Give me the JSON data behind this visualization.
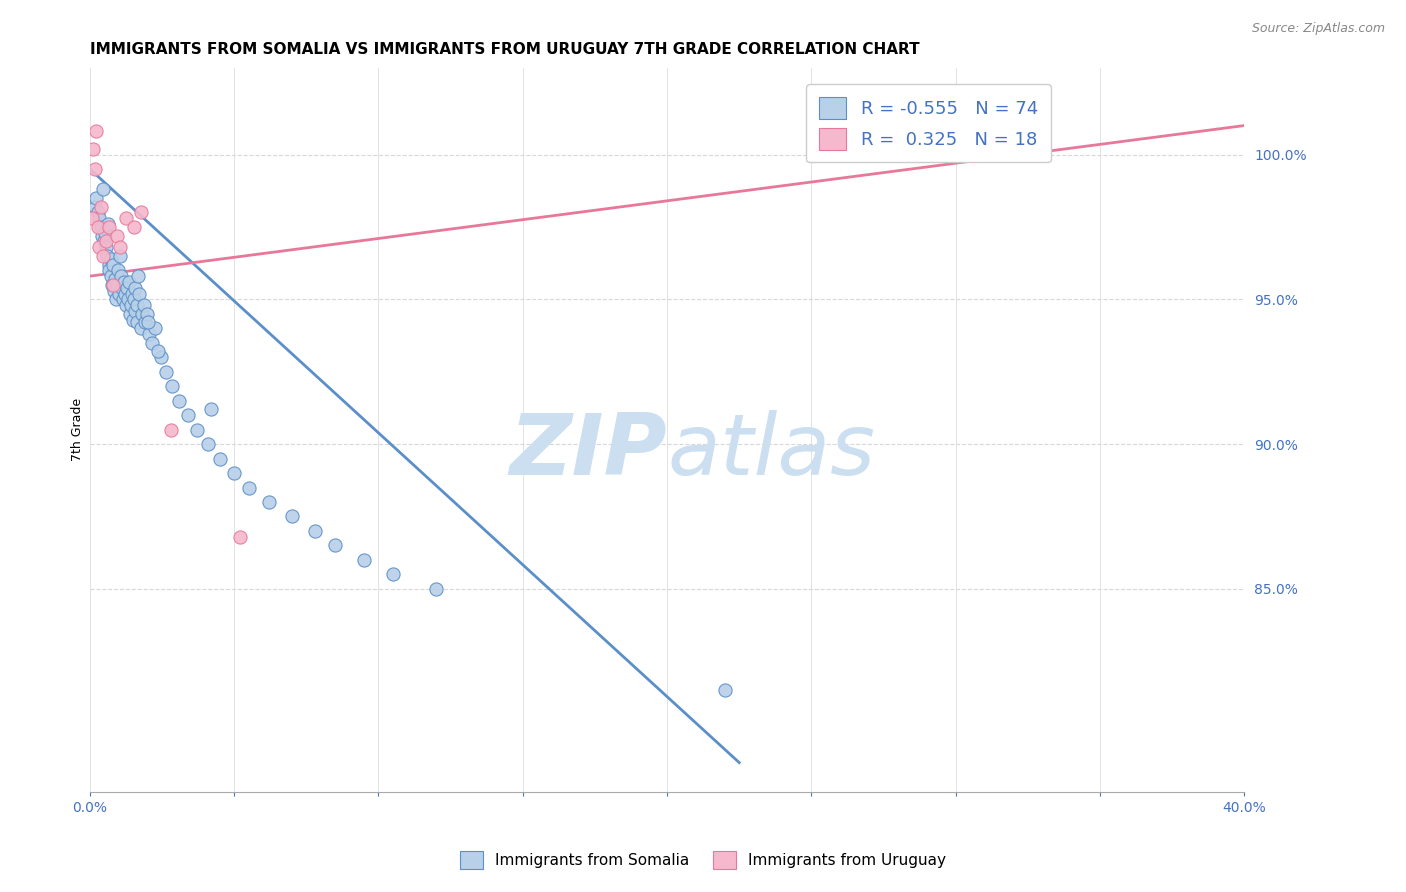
{
  "title": "IMMIGRANTS FROM SOMALIA VS IMMIGRANTS FROM URUGUAY 7TH GRADE CORRELATION CHART",
  "source": "Source: ZipAtlas.com",
  "ylabel": "7th Grade",
  "xlim": [
    0.0,
    40.0
  ],
  "ylim": [
    78.0,
    103.0
  ],
  "yticks_right": [
    85.0,
    90.0,
    95.0,
    100.0
  ],
  "ytick_labels_right": [
    "85.0%",
    "90.0%",
    "95.0%",
    "100.0%"
  ],
  "soma_color": "#b8d0e8",
  "soma_edge_color": "#5b8fc9",
  "urug_color": "#f5b8cc",
  "urug_edge_color": "#e8789a",
  "soma_R": -0.555,
  "soma_N": 74,
  "urug_R": 0.325,
  "urug_N": 18,
  "watermark_zip": "ZIP",
  "watermark_atlas": "atlas",
  "watermark_color": "#ccdff0",
  "soma_line_x0": 0.0,
  "soma_line_y0": 99.5,
  "soma_line_x1": 22.5,
  "soma_line_y1": 79.0,
  "urug_line_x0": 0.0,
  "urug_line_y0": 95.8,
  "urug_line_x1": 40.0,
  "urug_line_y1": 101.0,
  "soma_x": [
    0.18,
    0.22,
    0.28,
    0.32,
    0.38,
    0.42,
    0.45,
    0.48,
    0.52,
    0.55,
    0.6,
    0.62,
    0.65,
    0.68,
    0.72,
    0.75,
    0.78,
    0.82,
    0.85,
    0.88,
    0.92,
    0.95,
    0.98,
    1.02,
    1.05,
    1.08,
    1.12,
    1.15,
    1.18,
    1.22,
    1.25,
    1.28,
    1.32,
    1.35,
    1.38,
    1.42,
    1.45,
    1.48,
    1.52,
    1.55,
    1.58,
    1.62,
    1.65,
    1.72,
    1.78,
    1.82,
    1.88,
    1.92,
    1.98,
    2.05,
    2.15,
    2.25,
    2.45,
    2.65,
    2.85,
    3.1,
    3.4,
    3.7,
    4.1,
    4.5,
    5.0,
    5.5,
    6.2,
    7.0,
    7.8,
    8.5,
    9.5,
    10.5,
    12.0,
    22.0,
    2.35,
    4.2,
    2.0,
    1.68
  ],
  "soma_y": [
    98.2,
    98.5,
    98.0,
    97.8,
    97.5,
    97.2,
    98.8,
    97.0,
    97.3,
    96.8,
    96.5,
    97.6,
    96.2,
    96.0,
    96.4,
    95.8,
    95.5,
    96.2,
    95.3,
    95.7,
    95.0,
    95.5,
    96.0,
    95.2,
    96.5,
    95.8,
    95.4,
    95.0,
    95.6,
    95.2,
    94.8,
    95.4,
    95.0,
    95.6,
    94.5,
    94.8,
    95.2,
    94.3,
    95.0,
    94.6,
    95.4,
    94.2,
    94.8,
    95.2,
    94.0,
    94.5,
    94.8,
    94.2,
    94.5,
    93.8,
    93.5,
    94.0,
    93.0,
    92.5,
    92.0,
    91.5,
    91.0,
    90.5,
    90.0,
    89.5,
    89.0,
    88.5,
    88.0,
    87.5,
    87.0,
    86.5,
    86.0,
    85.5,
    85.0,
    81.5,
    93.2,
    91.2,
    94.2,
    95.8
  ],
  "urug_x": [
    0.08,
    0.12,
    0.18,
    0.22,
    0.28,
    0.32,
    0.38,
    0.45,
    0.55,
    0.68,
    0.82,
    0.95,
    1.05,
    1.25,
    1.52,
    1.78,
    2.82,
    5.2
  ],
  "urug_y": [
    97.8,
    100.2,
    99.5,
    100.8,
    97.5,
    96.8,
    98.2,
    96.5,
    97.0,
    97.5,
    95.5,
    97.2,
    96.8,
    97.8,
    97.5,
    98.0,
    90.5,
    86.8
  ],
  "background_color": "#ffffff",
  "grid_color": "#d8d8d8",
  "title_fontsize": 11,
  "axis_label_fontsize": 9,
  "tick_fontsize": 10
}
